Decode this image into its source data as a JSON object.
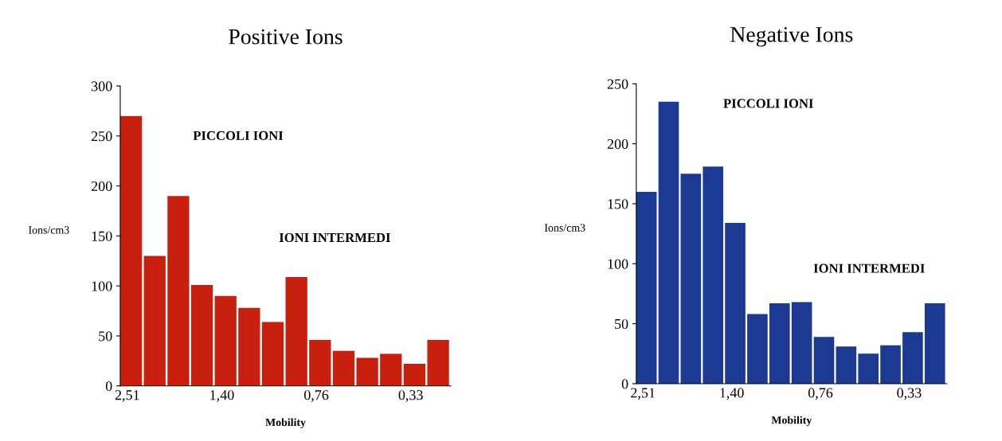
{
  "chart_data": [
    {
      "type": "bar",
      "title": "Positive Ions",
      "xlabel": "Mobility",
      "ylabel": "Ions/cm3",
      "categories": [
        "2,51",
        null,
        null,
        null,
        "1,40",
        null,
        null,
        null,
        "0,76",
        null,
        null,
        null,
        "0,33",
        null
      ],
      "values": [
        270,
        130,
        190,
        101,
        90,
        78,
        64,
        109,
        46,
        35,
        28,
        32,
        22,
        46
      ],
      "color": "#c8200f",
      "ylim": [
        0,
        300
      ],
      "yticks": [
        0,
        50,
        100,
        150,
        200,
        250,
        300
      ],
      "grid": false,
      "annotations": [
        "PICCOLI IONI",
        "IONI INTERMEDI"
      ]
    },
    {
      "type": "bar",
      "title": "Negative Ions",
      "xlabel": "Mobility",
      "ylabel": "Ions/cm3",
      "categories": [
        "2,51",
        null,
        null,
        null,
        "1,40",
        null,
        null,
        null,
        "0,76",
        null,
        null,
        null,
        "0,33",
        null
      ],
      "values": [
        160,
        235,
        175,
        181,
        134,
        58,
        67,
        68,
        39,
        31,
        25,
        32,
        43,
        67
      ],
      "color": "#1c3a94",
      "ylim": [
        0,
        250
      ],
      "yticks": [
        0,
        50,
        100,
        150,
        200,
        250
      ],
      "grid": false,
      "annotations": [
        "PICCOLI IONI",
        "IONI INTERMEDI"
      ]
    }
  ]
}
